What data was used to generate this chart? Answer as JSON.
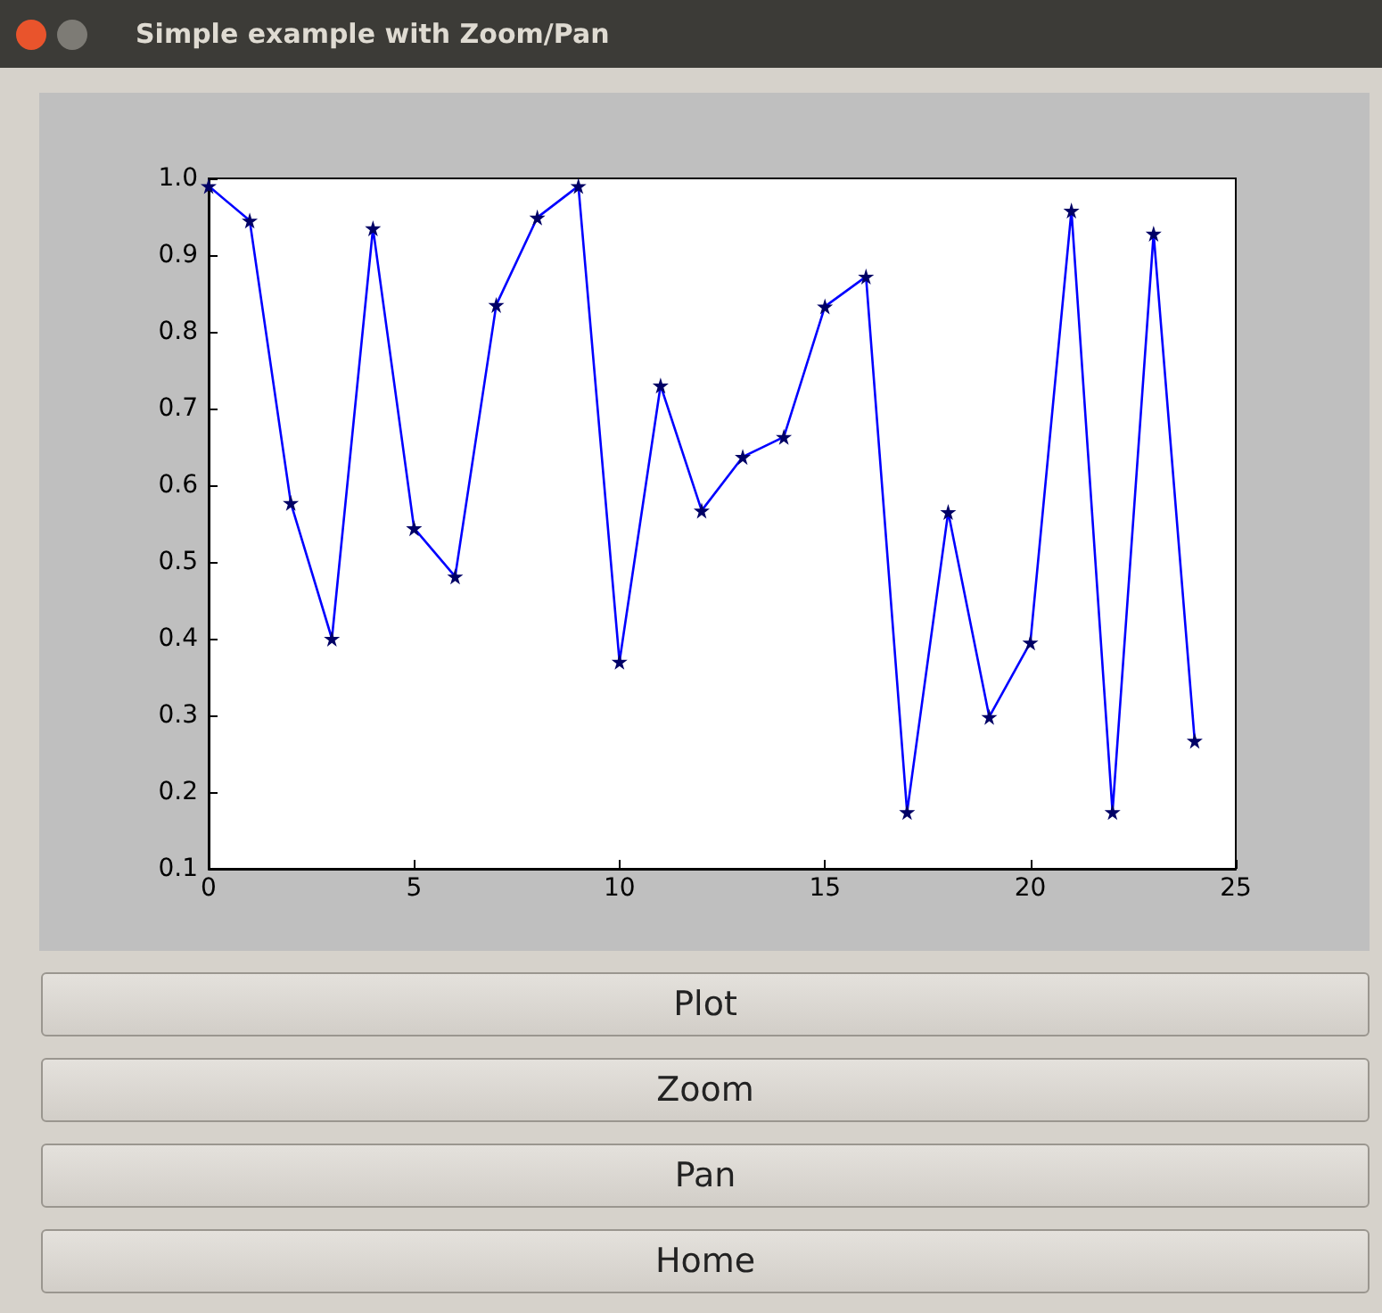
{
  "chart_data": {
    "type": "line",
    "title": "Simple example with Zoom/Pan",
    "x": [
      0,
      1,
      2,
      3,
      4,
      5,
      6,
      7,
      8,
      9,
      10,
      11,
      12,
      13,
      14,
      15,
      16,
      17,
      18,
      19,
      20,
      21,
      22,
      23,
      24
    ],
    "series": [
      {
        "color": "#0000ff",
        "values": [
          0.99,
          0.945,
          0.577,
          0.4,
          0.935,
          0.544,
          0.481,
          0.835,
          0.949,
          0.99,
          0.37,
          0.73,
          0.567,
          0.637,
          0.663,
          0.833,
          0.872,
          0.174,
          0.565,
          0.298,
          0.395,
          0.958,
          0.174,
          0.928,
          0.267
        ]
      }
    ],
    "xlim": [
      0,
      25
    ],
    "xticks": [
      0,
      5,
      10,
      15,
      20,
      25
    ],
    "ylim": [
      0.1,
      1.0
    ],
    "yticks": [
      0.1,
      0.2,
      0.3,
      0.4,
      0.5,
      0.6,
      0.7,
      0.8,
      0.9,
      {
        "value": 1.0,
        "label": "1.0"
      }
    ],
    "grid": false,
    "marker": "star",
    "line_style": "solid",
    "annotations": [
      "Plot",
      "Zoom",
      "Pan",
      "Home"
    ]
  }
}
